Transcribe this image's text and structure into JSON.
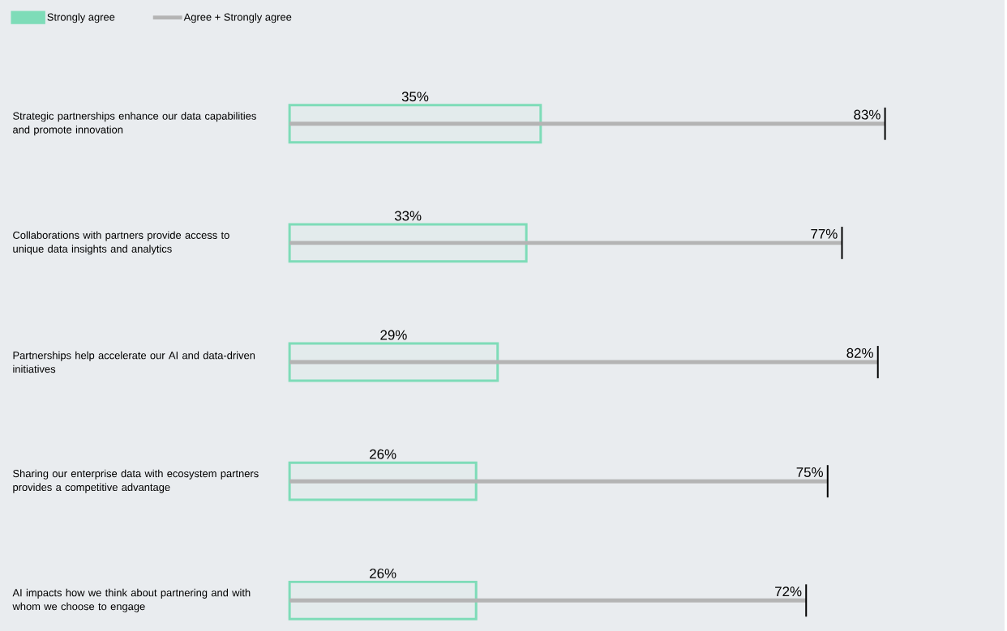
{
  "chart_data": {
    "type": "bar",
    "orientation": "horizontal",
    "categories": [
      "Strategic partnerships enhance our data capabilities and promote innovation",
      "Collaborations with partners provide access to unique data insights and analytics",
      "Partnerships help accelerate our AI and data-driven initiatives",
      "Sharing our enterprise data with ecosystem partners provides a competitive advantage",
      "AI impacts how we think about partnering and with whom we choose to engage"
    ],
    "series": [
      {
        "name": "Strongly agree",
        "color": "#7edcb8",
        "values": [
          35,
          33,
          29,
          26,
          26
        ],
        "value_labels": [
          "35%",
          "33%",
          "29%",
          "26%",
          "26%"
        ]
      },
      {
        "name": "Agree + Strongly agree",
        "color": "#b4b4b4",
        "values": [
          83,
          77,
          82,
          75,
          72
        ],
        "value_labels": [
          "83%",
          "77%",
          "82%",
          "75%",
          "72%"
        ]
      }
    ],
    "xlim": [
      0,
      100
    ],
    "legend": "top left"
  }
}
